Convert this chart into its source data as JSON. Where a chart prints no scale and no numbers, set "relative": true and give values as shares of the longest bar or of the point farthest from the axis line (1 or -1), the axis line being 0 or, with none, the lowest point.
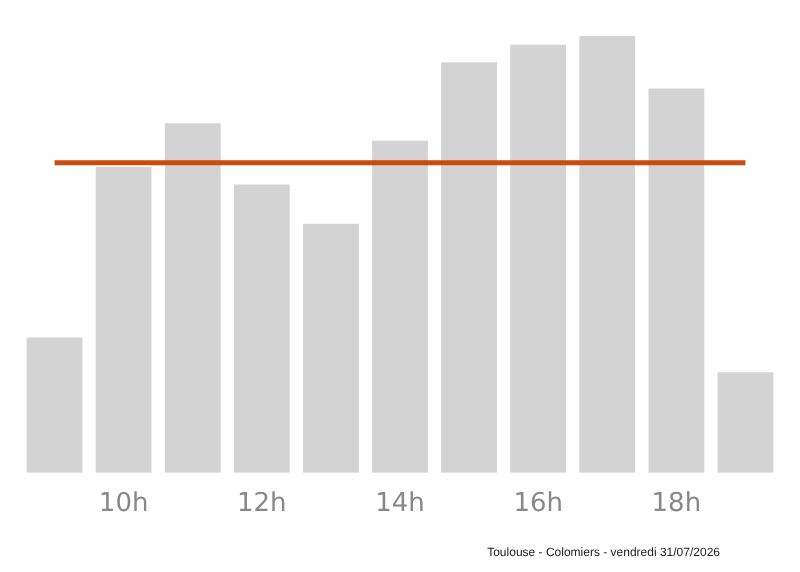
{
  "chart_data": {
    "type": "bar",
    "relative": true,
    "categories": [
      null,
      "10h",
      null,
      "12h",
      null,
      "14h",
      null,
      "16h",
      null,
      "18h",
      null
    ],
    "values": [
      0.31,
      0.7,
      0.8,
      0.66,
      0.57,
      0.76,
      0.94,
      0.98,
      1,
      0.88,
      0.23
    ],
    "color": "#d3d3d3",
    "ref_lines": [
      {
        "axis": "y",
        "value": 0.71,
        "color": "#cc4a0e"
      }
    ],
    "annotations": [
      "Toulouse - Colomiers - vendredi 31/07/2026"
    ],
    "grid": false,
    "legend": false
  }
}
